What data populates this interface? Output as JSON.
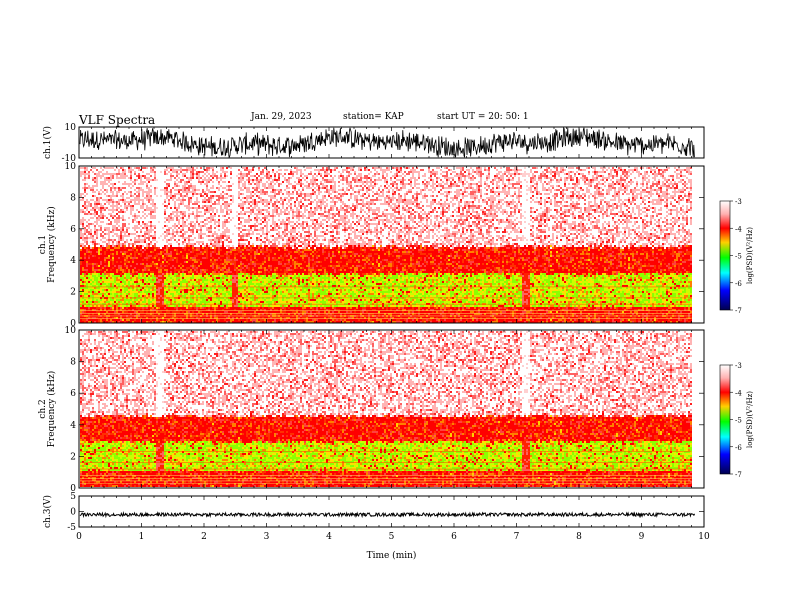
{
  "header": {
    "title": "VLF Spectra",
    "date": "Jan. 29, 2023",
    "station": "station= KAP",
    "start_ut": "start  UT =   20: 50: 1"
  },
  "chart_data": [
    {
      "type": "line",
      "panel": "ch1-waveform",
      "ylabel": "ch.1(V)",
      "ylim": [
        -10,
        10
      ],
      "yticks": [
        "10",
        "-10"
      ],
      "xlim": [
        0,
        10
      ],
      "description": "noisy waveform amplitude mostly within ±8 V, dense throughout 0–9.8 min"
    },
    {
      "type": "heatmap",
      "panel": "ch1-spectrogram",
      "ylabel": "ch.1\nFrequency  (kHz)",
      "ylim": [
        0,
        10
      ],
      "yticks": [
        "0",
        "2",
        "4",
        "6",
        "8",
        "10"
      ],
      "xlim": [
        0,
        10
      ],
      "data_end_min": 9.8,
      "colorbar": {
        "label": "log(PSD)(V²/Hz)",
        "range": [
          -7,
          -3
        ],
        "ticks": [
          "-3",
          "-4",
          "-5",
          "-6",
          "-7"
        ],
        "colors": [
          "#ffffff",
          "#ff0000",
          "#ffd000",
          "#00ff00",
          "#00ffff",
          "#0000ff",
          "#000050"
        ]
      },
      "bands_khz": {
        "green_yellow_core": [
          1.0,
          3.2
        ],
        "red_band": [
          0.0,
          4.8
        ],
        "pink_speckle": [
          4.8,
          10.0
        ]
      },
      "bright_white_columns_min": [
        1.29,
        2.48,
        7.15
      ]
    },
    {
      "type": "heatmap",
      "panel": "ch2-spectrogram",
      "ylabel": "ch.2\nFrequency  (kHz)",
      "ylim": [
        0,
        10
      ],
      "yticks": [
        "0",
        "2",
        "4",
        "6",
        "8",
        "10"
      ],
      "xlim": [
        0,
        10
      ],
      "data_end_min": 9.8,
      "colorbar": {
        "label": "log(PSD)(V²/Hz)",
        "range": [
          -7,
          -3
        ],
        "ticks": [
          "-3",
          "-4",
          "-5",
          "-6",
          "-7"
        ]
      },
      "bands_khz": {
        "green_yellow_core": [
          1.0,
          3.0
        ],
        "red_band": [
          0.0,
          4.5
        ],
        "pink_speckle": [
          4.5,
          10.0
        ]
      },
      "bright_white_columns_min": [
        1.29,
        7.15
      ]
    },
    {
      "type": "line",
      "panel": "ch3-waveform",
      "ylabel": "ch.3(V)",
      "ylim": [
        -5,
        5
      ],
      "yticks": [
        "5",
        "0",
        "-5"
      ],
      "xlim": [
        0,
        10
      ],
      "xlabel": "Time  (min)",
      "xticks": [
        "0",
        "1",
        "2",
        "3",
        "4",
        "5",
        "6",
        "7",
        "8",
        "9",
        "10"
      ],
      "description": "flat band near -1 V, amplitude about ±0.5 V"
    }
  ]
}
